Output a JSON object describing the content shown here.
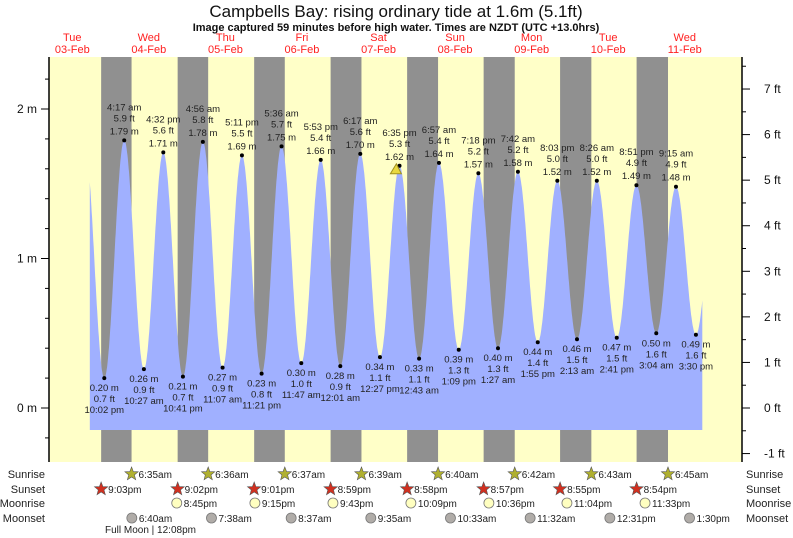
{
  "header": {
    "title": "Campbells Bay: rising  ordinary tide at 1.6m (5.1ft)",
    "subtitle": "Image captured 59 minutes before high water. Times are NZDT (UTC +13.0hrs)"
  },
  "colors": {
    "day": "#ffffc8",
    "night": "#909090",
    "tide": "#a0b0ff",
    "daylabel": "#ff2020",
    "sunrise": "#b0b030",
    "sunset": "#d03020",
    "moonrise": "#ffffc0",
    "moonset": "#b0aca8"
  },
  "days": [
    {
      "dow": "Tue",
      "date": "03-Feb"
    },
    {
      "dow": "Wed",
      "date": "04-Feb"
    },
    {
      "dow": "Thu",
      "date": "05-Feb"
    },
    {
      "dow": "Fri",
      "date": "06-Feb"
    },
    {
      "dow": "Sat",
      "date": "07-Feb"
    },
    {
      "dow": "Sun",
      "date": "08-Feb"
    },
    {
      "dow": "Mon",
      "date": "09-Feb"
    },
    {
      "dow": "Tue",
      "date": "10-Feb"
    },
    {
      "dow": "Wed",
      "date": "11-Feb"
    }
  ],
  "chart_data": {
    "type": "area",
    "title": "Campbells Bay: rising  ordinary tide at 1.6m (5.1ft)",
    "y_left": {
      "unit": "m",
      "ticks": [
        "0 m",
        "1 m",
        "2 m"
      ],
      "values": [
        0,
        1,
        2
      ],
      "range": [
        -0.2,
        2.35
      ]
    },
    "y_right": {
      "unit": "ft",
      "ticks": [
        "-1 ft",
        "0 ft",
        "1 ft",
        "2 ft",
        "3 ft",
        "4 ft",
        "5 ft",
        "6 ft",
        "7 ft"
      ],
      "values": [
        -1,
        0,
        1,
        2,
        3,
        4,
        5,
        6,
        7
      ]
    },
    "current": {
      "day": 4,
      "time": "5:36 pm",
      "height_m": 1.6,
      "height_ft": 5.1,
      "state": "rising"
    },
    "extremes": [
      {
        "type": "low",
        "day": 0,
        "time": "10:02 pm",
        "m": "0.20 m",
        "ft": "0.7 ft",
        "h": 0.2
      },
      {
        "type": "high",
        "day": 1,
        "time": "4:17 am",
        "m": "1.79 m",
        "ft": "5.9 ft",
        "h": 1.79
      },
      {
        "type": "low",
        "day": 1,
        "time": "10:27 am",
        "m": "0.26 m",
        "ft": "0.9 ft",
        "h": 0.26
      },
      {
        "type": "high",
        "day": 1,
        "time": "4:32 pm",
        "m": "1.71 m",
        "ft": "5.6 ft",
        "h": 1.71
      },
      {
        "type": "low",
        "day": 1,
        "time": "10:41 pm",
        "m": "0.21 m",
        "ft": "0.7 ft",
        "h": 0.21
      },
      {
        "type": "high",
        "day": 2,
        "time": "4:56 am",
        "m": "1.78 m",
        "ft": "5.8 ft",
        "h": 1.78
      },
      {
        "type": "low",
        "day": 2,
        "time": "11:07 am",
        "m": "0.27 m",
        "ft": "0.9 ft",
        "h": 0.27
      },
      {
        "type": "high",
        "day": 2,
        "time": "5:11 pm",
        "m": "1.69 m",
        "ft": "5.5 ft",
        "h": 1.69
      },
      {
        "type": "low",
        "day": 2,
        "time": "11:21 pm",
        "m": "0.23 m",
        "ft": "0.8 ft",
        "h": 0.23
      },
      {
        "type": "high",
        "day": 3,
        "time": "5:36 am",
        "m": "1.75 m",
        "ft": "5.7 ft",
        "h": 1.75
      },
      {
        "type": "low",
        "day": 3,
        "time": "11:47 am",
        "m": "0.30 m",
        "ft": "1.0 ft",
        "h": 0.3
      },
      {
        "type": "high",
        "day": 3,
        "time": "5:53 pm",
        "m": "1.66 m",
        "ft": "5.4 ft",
        "h": 1.66
      },
      {
        "type": "low",
        "day": 4,
        "time": "12:01 am",
        "m": "0.28 m",
        "ft": "0.9 ft",
        "h": 0.28
      },
      {
        "type": "high",
        "day": 4,
        "time": "6:17 am",
        "m": "1.70 m",
        "ft": "5.6 ft",
        "h": 1.7
      },
      {
        "type": "low",
        "day": 4,
        "time": "12:27 pm",
        "m": "0.34 m",
        "ft": "1.1 ft",
        "h": 0.34
      },
      {
        "type": "high",
        "day": 4,
        "time": "6:35 pm",
        "m": "1.62 m",
        "ft": "5.3 ft",
        "h": 1.62
      },
      {
        "type": "low",
        "day": 5,
        "time": "12:43 am",
        "m": "0.33 m",
        "ft": "1.1 ft",
        "h": 0.33
      },
      {
        "type": "high",
        "day": 5,
        "time": "6:57 am",
        "m": "1.64 m",
        "ft": "5.4 ft",
        "h": 1.64
      },
      {
        "type": "low",
        "day": 5,
        "time": "1:09 pm",
        "m": "0.39 m",
        "ft": "1.3 ft",
        "h": 0.39
      },
      {
        "type": "high",
        "day": 5,
        "time": "7:18 pm",
        "m": "1.57 m",
        "ft": "5.2 ft",
        "h": 1.57
      },
      {
        "type": "low",
        "day": 6,
        "time": "1:27 am",
        "m": "0.40 m",
        "ft": "1.3 ft",
        "h": 0.4
      },
      {
        "type": "high",
        "day": 6,
        "time": "7:42 am",
        "m": "1.58 m",
        "ft": "5.2 ft",
        "h": 1.58
      },
      {
        "type": "low",
        "day": 6,
        "time": "1:55 pm",
        "m": "0.44 m",
        "ft": "1.4 ft",
        "h": 0.44
      },
      {
        "type": "high",
        "day": 6,
        "time": "8:03 pm",
        "m": "1.52 m",
        "ft": "5.0 ft",
        "h": 1.52
      },
      {
        "type": "low",
        "day": 7,
        "time": "2:13 am",
        "m": "0.46 m",
        "ft": "1.5 ft",
        "h": 0.46
      },
      {
        "type": "high",
        "day": 7,
        "time": "8:26 am",
        "m": "1.52 m",
        "ft": "5.0 ft",
        "h": 1.52
      },
      {
        "type": "low",
        "day": 7,
        "time": "2:41 pm",
        "m": "0.47 m",
        "ft": "1.5 ft",
        "h": 0.47
      },
      {
        "type": "high",
        "day": 7,
        "time": "8:51 pm",
        "m": "1.49 m",
        "ft": "4.9 ft",
        "h": 1.49
      },
      {
        "type": "low",
        "day": 8,
        "time": "3:04 am",
        "m": "0.50 m",
        "ft": "1.6 ft",
        "h": 0.5
      },
      {
        "type": "high",
        "day": 8,
        "time": "9:15 am",
        "m": "1.48 m",
        "ft": "4.9 ft",
        "h": 1.48
      },
      {
        "type": "low",
        "day": 8,
        "time": "3:30 pm",
        "m": "0.49 m",
        "ft": "1.6 ft",
        "h": 0.49
      }
    ]
  },
  "astro": {
    "row_labels": {
      "sunrise": "Sunrise",
      "sunset": "Sunset",
      "moonrise": "Moonrise",
      "moonset": "Moonset"
    },
    "sunrise": [
      {
        "day": 1,
        "time": "6:35am"
      },
      {
        "day": 2,
        "time": "6:36am"
      },
      {
        "day": 3,
        "time": "6:37am"
      },
      {
        "day": 4,
        "time": "6:39am"
      },
      {
        "day": 5,
        "time": "6:40am"
      },
      {
        "day": 6,
        "time": "6:42am"
      },
      {
        "day": 7,
        "time": "6:43am"
      },
      {
        "day": 8,
        "time": "6:45am"
      }
    ],
    "sunset": [
      {
        "day": 0,
        "time": "9:03pm"
      },
      {
        "day": 1,
        "time": "9:02pm"
      },
      {
        "day": 2,
        "time": "9:01pm"
      },
      {
        "day": 3,
        "time": "8:59pm"
      },
      {
        "day": 4,
        "time": "8:58pm"
      },
      {
        "day": 5,
        "time": "8:57pm"
      },
      {
        "day": 6,
        "time": "8:55pm"
      },
      {
        "day": 7,
        "time": "8:54pm"
      }
    ],
    "moonrise": [
      {
        "day": 1,
        "time": "8:45pm"
      },
      {
        "day": 2,
        "time": "9:15pm"
      },
      {
        "day": 3,
        "time": "9:43pm"
      },
      {
        "day": 4,
        "time": "10:09pm"
      },
      {
        "day": 5,
        "time": "10:36pm"
      },
      {
        "day": 6,
        "time": "11:04pm"
      },
      {
        "day": 7,
        "time": "11:33pm"
      }
    ],
    "moonset": [
      {
        "day": 1,
        "time": "6:40am"
      },
      {
        "day": 2,
        "time": "7:38am"
      },
      {
        "day": 3,
        "time": "8:37am"
      },
      {
        "day": 4,
        "time": "9:35am"
      },
      {
        "day": 5,
        "time": "10:33am"
      },
      {
        "day": 6,
        "time": "11:32am"
      },
      {
        "day": 7,
        "time": "12:31pm"
      },
      {
        "day": 8,
        "time": "1:30pm"
      }
    ],
    "full_moon": "Full Moon | 12:08pm"
  }
}
